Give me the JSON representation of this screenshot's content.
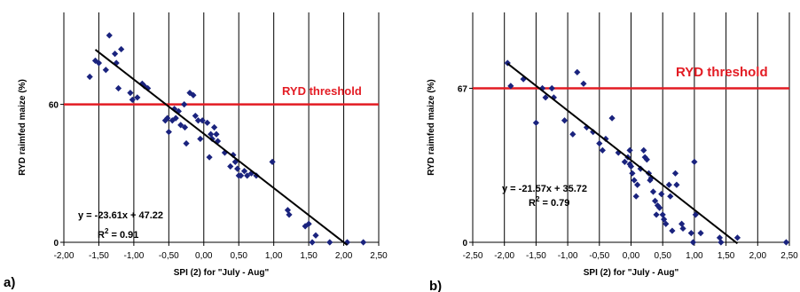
{
  "chart_data": [
    {
      "panel": "a)",
      "type": "scatter",
      "xlabel": "SPI (2) for \"July - Aug\"",
      "ylabel": "RYD raimfed maize (%)",
      "xlim": [
        -2.0,
        2.5
      ],
      "ylim": [
        0,
        100
      ],
      "x_ticks": [
        "-2,00",
        "-1,50",
        "-1,00",
        "-0,50",
        "0,00",
        "0,50",
        "1,00",
        "1,50",
        "2,00",
        "2,50"
      ],
      "x_tick_values": [
        -2.0,
        -1.5,
        -1.0,
        -0.5,
        0.0,
        0.5,
        1.0,
        1.5,
        2.0,
        2.5
      ],
      "y_ticks": [
        "0",
        "60"
      ],
      "y_tick_values": [
        0,
        60
      ],
      "vertical_grid": true,
      "marker_color": "#1a237e",
      "threshold": {
        "value": 60,
        "label": "RYD threshold",
        "color": "#e31b23"
      },
      "regression": {
        "slope": -23.61,
        "intercept": 47.22,
        "equation": "y = -23.61x + 47.22",
        "r2_prefix": "R",
        "r2_sup": "2",
        "r2_value": " = 0.91",
        "x_range": [
          -1.55,
          2.05
        ]
      },
      "points": [
        [
          -1.63,
          72
        ],
        [
          -1.55,
          79
        ],
        [
          -1.5,
          78
        ],
        [
          -1.4,
          75
        ],
        [
          -1.35,
          90
        ],
        [
          -1.27,
          82
        ],
        [
          -1.25,
          78
        ],
        [
          -1.22,
          67
        ],
        [
          -1.18,
          84
        ],
        [
          -1.05,
          65
        ],
        [
          -1.02,
          62
        ],
        [
          -0.95,
          63
        ],
        [
          -0.88,
          69
        ],
        [
          -0.85,
          68
        ],
        [
          -0.8,
          67
        ],
        [
          -0.55,
          53
        ],
        [
          -0.52,
          54
        ],
        [
          -0.5,
          48
        ],
        [
          -0.45,
          53
        ],
        [
          -0.42,
          58
        ],
        [
          -0.4,
          54
        ],
        [
          -0.36,
          57
        ],
        [
          -0.33,
          51
        ],
        [
          -0.28,
          60
        ],
        [
          -0.27,
          50
        ],
        [
          -0.25,
          43
        ],
        [
          -0.2,
          65
        ],
        [
          -0.15,
          64
        ],
        [
          -0.12,
          55
        ],
        [
          -0.08,
          53
        ],
        [
          -0.05,
          45
        ],
        [
          -0.02,
          53
        ],
        [
          0.05,
          52
        ],
        [
          0.08,
          37
        ],
        [
          0.1,
          47
        ],
        [
          0.12,
          45
        ],
        [
          0.15,
          50
        ],
        [
          0.18,
          47
        ],
        [
          0.2,
          44
        ],
        [
          0.3,
          39
        ],
        [
          0.38,
          33
        ],
        [
          0.42,
          38
        ],
        [
          0.45,
          35
        ],
        [
          0.48,
          32
        ],
        [
          0.5,
          29
        ],
        [
          0.53,
          29
        ],
        [
          0.58,
          31
        ],
        [
          0.62,
          29
        ],
        [
          0.68,
          30
        ],
        [
          0.75,
          29
        ],
        [
          0.98,
          35
        ],
        [
          1.2,
          14
        ],
        [
          1.22,
          12
        ],
        [
          1.45,
          7
        ],
        [
          1.5,
          8
        ],
        [
          1.55,
          0
        ],
        [
          1.6,
          3
        ],
        [
          1.8,
          0
        ],
        [
          2.05,
          0
        ],
        [
          2.28,
          0
        ]
      ]
    },
    {
      "panel": "b)",
      "type": "scatter",
      "xlabel": "SPI (2) for \"July - Aug\"",
      "ylabel": "RYD raimfed maize (%)",
      "xlim": [
        -2.5,
        2.5
      ],
      "ylim": [
        0,
        100
      ],
      "x_ticks": [
        "-2,50",
        "-2,00",
        "-1,50",
        "-1,00",
        "-0,50",
        "0,00",
        "0,50",
        "1,00",
        "1,50",
        "2,00",
        "2,50"
      ],
      "x_tick_values": [
        -2.5,
        -2.0,
        -1.5,
        -1.0,
        -0.5,
        0.0,
        0.5,
        1.0,
        1.5,
        2.0,
        2.5
      ],
      "y_ticks": [
        "0",
        "67"
      ],
      "y_tick_values": [
        0,
        67
      ],
      "vertical_grid": true,
      "marker_color": "#1a237e",
      "threshold": {
        "value": 67,
        "label": "RYD threshold",
        "color": "#e31b23"
      },
      "regression": {
        "slope": -21.57,
        "intercept": 35.72,
        "equation": "y = -21.57x + 35.72",
        "r2_prefix": "R",
        "r2_sup": "2",
        "r2_value": " = 0.79",
        "x_range": [
          -1.95,
          1.68
        ]
      },
      "points": [
        [
          -1.95,
          78
        ],
        [
          -1.9,
          68
        ],
        [
          -1.7,
          71
        ],
        [
          -1.5,
          52
        ],
        [
          -1.4,
          67
        ],
        [
          -1.35,
          63
        ],
        [
          -1.25,
          67
        ],
        [
          -1.22,
          63
        ],
        [
          -1.05,
          53
        ],
        [
          -0.92,
          47
        ],
        [
          -0.85,
          74
        ],
        [
          -0.75,
          69
        ],
        [
          -0.7,
          50
        ],
        [
          -0.6,
          48
        ],
        [
          -0.5,
          43
        ],
        [
          -0.45,
          40
        ],
        [
          -0.4,
          45
        ],
        [
          -0.3,
          54
        ],
        [
          -0.2,
          39
        ],
        [
          -0.1,
          35
        ],
        [
          -0.05,
          37
        ],
        [
          -0.02,
          40
        ],
        [
          -0.02,
          34
        ],
        [
          0.0,
          33
        ],
        [
          0.02,
          30
        ],
        [
          0.05,
          27
        ],
        [
          0.08,
          20
        ],
        [
          0.1,
          25
        ],
        [
          0.15,
          32
        ],
        [
          0.2,
          40
        ],
        [
          0.22,
          37
        ],
        [
          0.25,
          36
        ],
        [
          0.28,
          30
        ],
        [
          0.3,
          27
        ],
        [
          0.32,
          28
        ],
        [
          0.35,
          22
        ],
        [
          0.38,
          18
        ],
        [
          0.4,
          12
        ],
        [
          0.42,
          16
        ],
        [
          0.45,
          15
        ],
        [
          0.48,
          21
        ],
        [
          0.5,
          12
        ],
        [
          0.52,
          10
        ],
        [
          0.55,
          8
        ],
        [
          0.6,
          25
        ],
        [
          0.62,
          20
        ],
        [
          0.65,
          5
        ],
        [
          0.7,
          30
        ],
        [
          0.72,
          25
        ],
        [
          0.8,
          8
        ],
        [
          0.82,
          6
        ],
        [
          0.95,
          4
        ],
        [
          0.98,
          0
        ],
        [
          1.0,
          35
        ],
        [
          1.02,
          12
        ],
        [
          1.1,
          4
        ],
        [
          1.4,
          2
        ],
        [
          1.42,
          0
        ],
        [
          1.68,
          2
        ],
        [
          2.45,
          0
        ]
      ]
    }
  ]
}
